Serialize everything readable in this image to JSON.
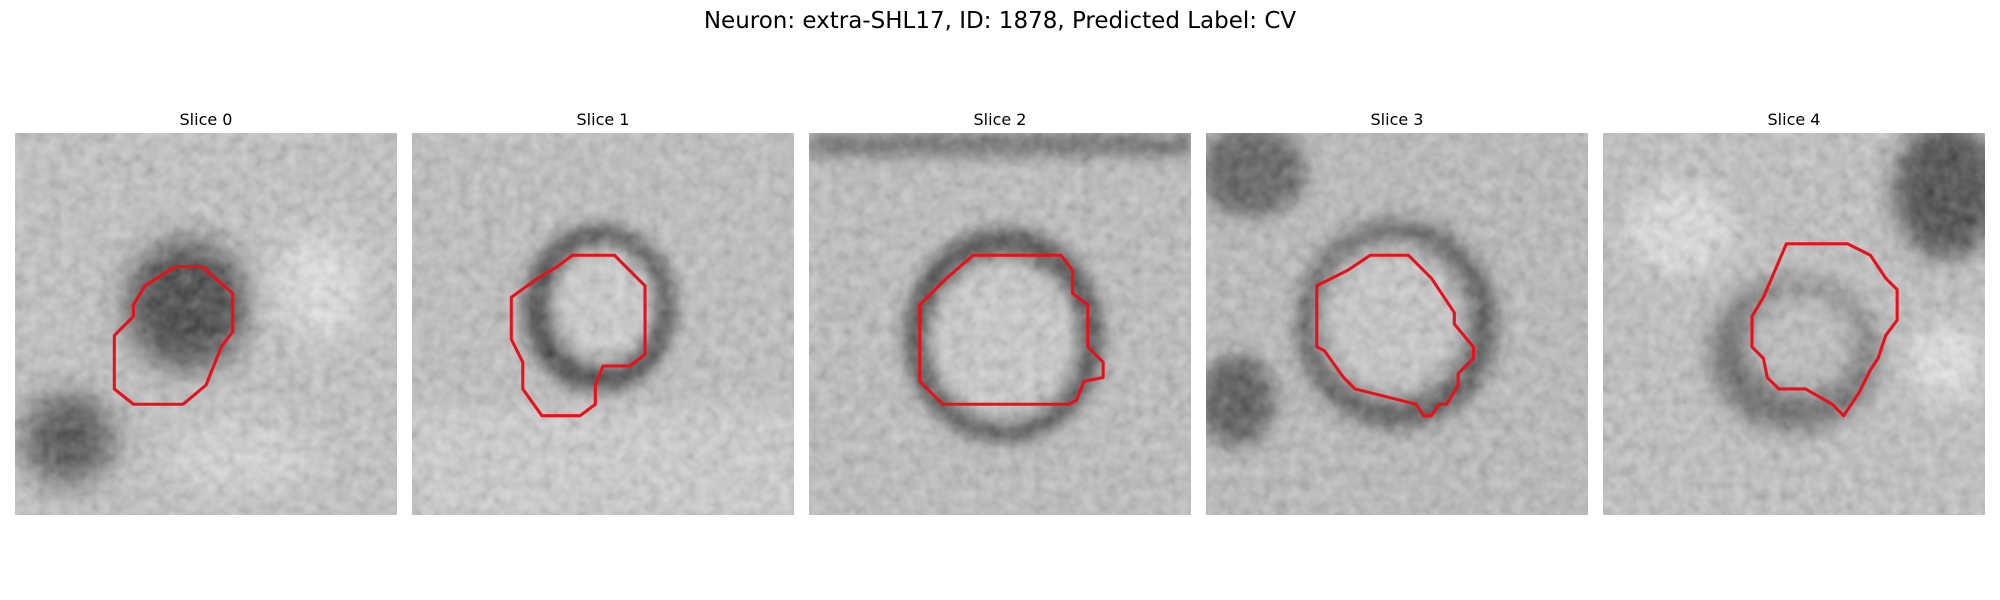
{
  "figure": {
    "title": "Neuron: extra-SHL17, ID: 1878, Predicted Label: CV",
    "contour_color": "#e8101a"
  },
  "slices": [
    {
      "label": "Slice 0"
    },
    {
      "label": "Slice 1"
    },
    {
      "label": "Slice 2"
    },
    {
      "label": "Slice 3"
    },
    {
      "label": "Slice 4"
    }
  ]
}
